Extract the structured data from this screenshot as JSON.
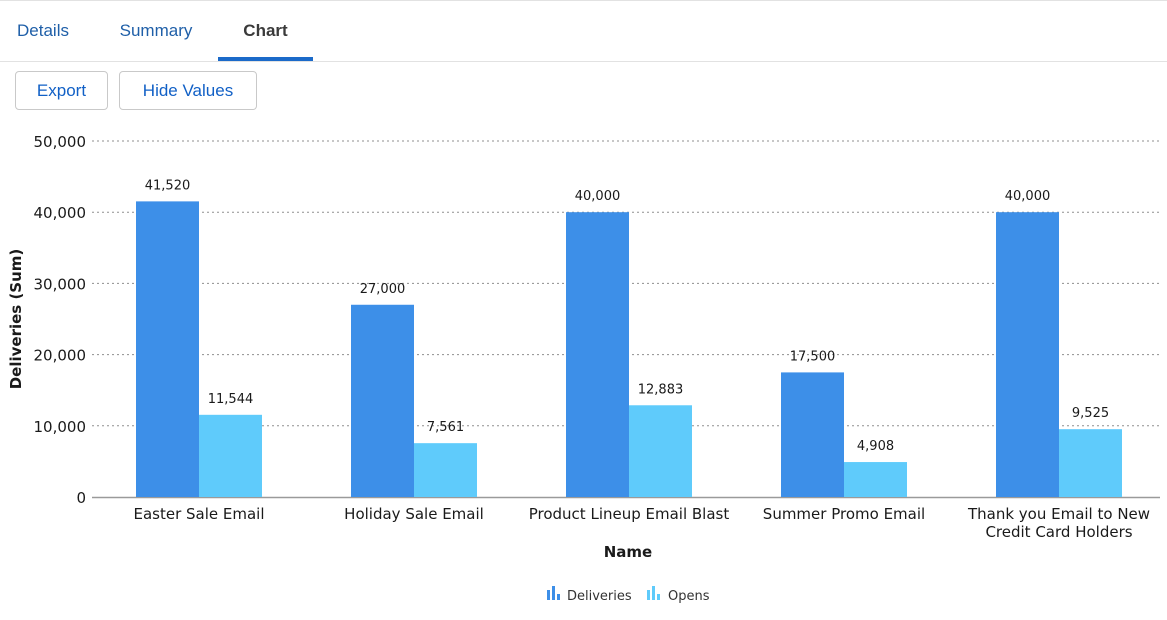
{
  "tabs": [
    {
      "label": "Details",
      "active": false
    },
    {
      "label": "Summary",
      "active": false
    },
    {
      "label": "Chart",
      "active": true
    }
  ],
  "buttons": {
    "export_label": "Export",
    "hide_values_label": "Hide Values"
  },
  "colors": {
    "deliveries": "#3d8fe8",
    "opens": "#5fcbfb",
    "link": "#1160c6",
    "tab_active_underline": "#1b6ac9"
  },
  "chart_data": {
    "type": "bar",
    "xlabel": "Name",
    "ylabel": "Deliveries (Sum)",
    "ylim": [
      0,
      50000
    ],
    "yticks": [
      0,
      10000,
      20000,
      30000,
      40000,
      50000
    ],
    "ytick_labels": [
      "0",
      "10,000",
      "20,000",
      "30,000",
      "40,000",
      "50,000"
    ],
    "grid": true,
    "legend_position": "bottom-center",
    "categories": [
      [
        "Easter Sale Email"
      ],
      [
        "Holiday Sale Email"
      ],
      [
        "Product Lineup Email Blast"
      ],
      [
        "Summer Promo Email"
      ],
      [
        "Thank you Email to New",
        "Credit Card Holders"
      ]
    ],
    "series": [
      {
        "name": "Deliveries",
        "color": "#3d8fe8",
        "values": [
          41520,
          27000,
          40000,
          17500,
          40000
        ],
        "labels": [
          "41,520",
          "27,000",
          "40,000",
          "17,500",
          "40,000"
        ]
      },
      {
        "name": "Opens",
        "color": "#5fcbfb",
        "values": [
          11544,
          7561,
          12883,
          4908,
          9525
        ],
        "labels": [
          "11,544",
          "7,561",
          "12,883",
          "4,908",
          "9,525"
        ]
      }
    ]
  }
}
